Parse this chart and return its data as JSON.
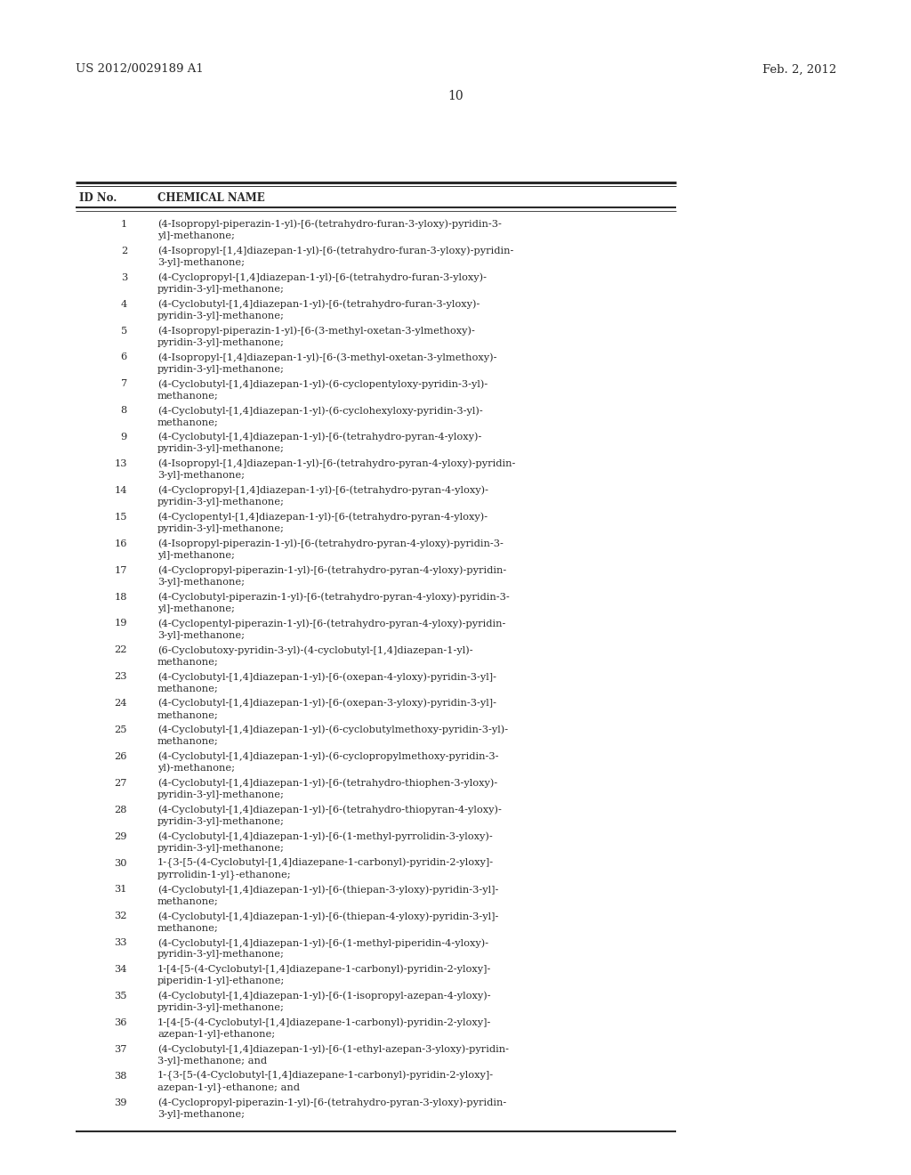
{
  "header_left": "US 2012/0029189 A1",
  "header_right": "Feb. 2, 2012",
  "page_number": "10",
  "col_header_id": "ID No.",
  "col_header_name": "CHEMICAL NAME",
  "background_color": "#ffffff",
  "text_color": "#2a2a2a",
  "entries": [
    {
      "id": "1",
      "name": "(4-Isopropyl-piperazin-1-yl)-[6-(tetrahydro-furan-3-yloxy)-pyridin-3-\nyl]-methanone;"
    },
    {
      "id": "2",
      "name": "(4-Isopropyl-[1,4]diazepan-1-yl)-[6-(tetrahydro-furan-3-yloxy)-pyridin-\n3-yl]-methanone;"
    },
    {
      "id": "3",
      "name": "(4-Cyclopropyl-[1,4]diazepan-1-yl)-[6-(tetrahydro-furan-3-yloxy)-\npyridin-3-yl]-methanone;"
    },
    {
      "id": "4",
      "name": "(4-Cyclobutyl-[1,4]diazepan-1-yl)-[6-(tetrahydro-furan-3-yloxy)-\npyridin-3-yl]-methanone;"
    },
    {
      "id": "5",
      "name": "(4-Isopropyl-piperazin-1-yl)-[6-(3-methyl-oxetan-3-ylmethoxy)-\npyridin-3-yl]-methanone;"
    },
    {
      "id": "6",
      "name": "(4-Isopropyl-[1,4]diazepan-1-yl)-[6-(3-methyl-oxetan-3-ylmethoxy)-\npyridin-3-yl]-methanone;"
    },
    {
      "id": "7",
      "name": "(4-Cyclobutyl-[1,4]diazepan-1-yl)-(6-cyclopentyloxy-pyridin-3-yl)-\nmethanone;"
    },
    {
      "id": "8",
      "name": "(4-Cyclobutyl-[1,4]diazepan-1-yl)-(6-cyclohexyloxy-pyridin-3-yl)-\nmethanone;"
    },
    {
      "id": "9",
      "name": "(4-Cyclobutyl-[1,4]diazepan-1-yl)-[6-(tetrahydro-pyran-4-yloxy)-\npyridin-3-yl]-methanone;"
    },
    {
      "id": "13",
      "name": "(4-Isopropyl-[1,4]diazepan-1-yl)-[6-(tetrahydro-pyran-4-yloxy)-pyridin-\n3-yl]-methanone;"
    },
    {
      "id": "14",
      "name": "(4-Cyclopropyl-[1,4]diazepan-1-yl)-[6-(tetrahydro-pyran-4-yloxy)-\npyridin-3-yl]-methanone;"
    },
    {
      "id": "15",
      "name": "(4-Cyclopentyl-[1,4]diazepan-1-yl)-[6-(tetrahydro-pyran-4-yloxy)-\npyridin-3-yl]-methanone;"
    },
    {
      "id": "16",
      "name": "(4-Isopropyl-piperazin-1-yl)-[6-(tetrahydro-pyran-4-yloxy)-pyridin-3-\nyl]-methanone;"
    },
    {
      "id": "17",
      "name": "(4-Cyclopropyl-piperazin-1-yl)-[6-(tetrahydro-pyran-4-yloxy)-pyridin-\n3-yl]-methanone;"
    },
    {
      "id": "18",
      "name": "(4-Cyclobutyl-piperazin-1-yl)-[6-(tetrahydro-pyran-4-yloxy)-pyridin-3-\nyl]-methanone;"
    },
    {
      "id": "19",
      "name": "(4-Cyclopentyl-piperazin-1-yl)-[6-(tetrahydro-pyran-4-yloxy)-pyridin-\n3-yl]-methanone;"
    },
    {
      "id": "22",
      "name": "(6-Cyclobutoxy-pyridin-3-yl)-(4-cyclobutyl-[1,4]diazepan-1-yl)-\nmethanone;"
    },
    {
      "id": "23",
      "name": "(4-Cyclobutyl-[1,4]diazepan-1-yl)-[6-(oxepan-4-yloxy)-pyridin-3-yl]-\nmethanone;"
    },
    {
      "id": "24",
      "name": "(4-Cyclobutyl-[1,4]diazepan-1-yl)-[6-(oxepan-3-yloxy)-pyridin-3-yl]-\nmethanone;"
    },
    {
      "id": "25",
      "name": "(4-Cyclobutyl-[1,4]diazepan-1-yl)-(6-cyclobutylmethoxy-pyridin-3-yl)-\nmethanone;"
    },
    {
      "id": "26",
      "name": "(4-Cyclobutyl-[1,4]diazepan-1-yl)-(6-cyclopropylmethoxy-pyridin-3-\nyl)-methanone;"
    },
    {
      "id": "27",
      "name": "(4-Cyclobutyl-[1,4]diazepan-1-yl)-[6-(tetrahydro-thiophen-3-yloxy)-\npyridin-3-yl]-methanone;"
    },
    {
      "id": "28",
      "name": "(4-Cyclobutyl-[1,4]diazepan-1-yl)-[6-(tetrahydro-thiopyran-4-yloxy)-\npyridin-3-yl]-methanone;"
    },
    {
      "id": "29",
      "name": "(4-Cyclobutyl-[1,4]diazepan-1-yl)-[6-(1-methyl-pyrrolidin-3-yloxy)-\npyridin-3-yl]-methanone;"
    },
    {
      "id": "30",
      "name": "1-{3-[5-(4-Cyclobutyl-[1,4]diazepane-1-carbonyl)-pyridin-2-yloxy]-\npyrrolidin-1-yl}-ethanone;"
    },
    {
      "id": "31",
      "name": "(4-Cyclobutyl-[1,4]diazepan-1-yl)-[6-(thiepan-3-yloxy)-pyridin-3-yl]-\nmethanone;"
    },
    {
      "id": "32",
      "name": "(4-Cyclobutyl-[1,4]diazepan-1-yl)-[6-(thiepan-4-yloxy)-pyridin-3-yl]-\nmethanone;"
    },
    {
      "id": "33",
      "name": "(4-Cyclobutyl-[1,4]diazepan-1-yl)-[6-(1-methyl-piperidin-4-yloxy)-\npyridin-3-yl]-methanone;"
    },
    {
      "id": "34",
      "name": "1-[4-[5-(4-Cyclobutyl-[1,4]diazepane-1-carbonyl)-pyridin-2-yloxy]-\npiperidin-1-yl]-ethanone;"
    },
    {
      "id": "35",
      "name": "(4-Cyclobutyl-[1,4]diazepan-1-yl)-[6-(1-isopropyl-azepan-4-yloxy)-\npyridin-3-yl]-methanone;"
    },
    {
      "id": "36",
      "name": "1-[4-[5-(4-Cyclobutyl-[1,4]diazepane-1-carbonyl)-pyridin-2-yloxy]-\nazepan-1-yl]-ethanone;"
    },
    {
      "id": "37",
      "name": "(4-Cyclobutyl-[1,4]diazepan-1-yl)-[6-(1-ethyl-azepan-3-yloxy)-pyridin-\n3-yl]-methanone; and"
    },
    {
      "id": "38",
      "name": "1-{3-[5-(4-Cyclobutyl-[1,4]diazepane-1-carbonyl)-pyridin-2-yloxy]-\nazepan-1-yl}-ethanone; and"
    },
    {
      "id": "39",
      "name": "(4-Cyclopropyl-piperazin-1-yl)-[6-(tetrahydro-pyran-3-yloxy)-pyridin-\n3-yl]-methanone;"
    }
  ]
}
